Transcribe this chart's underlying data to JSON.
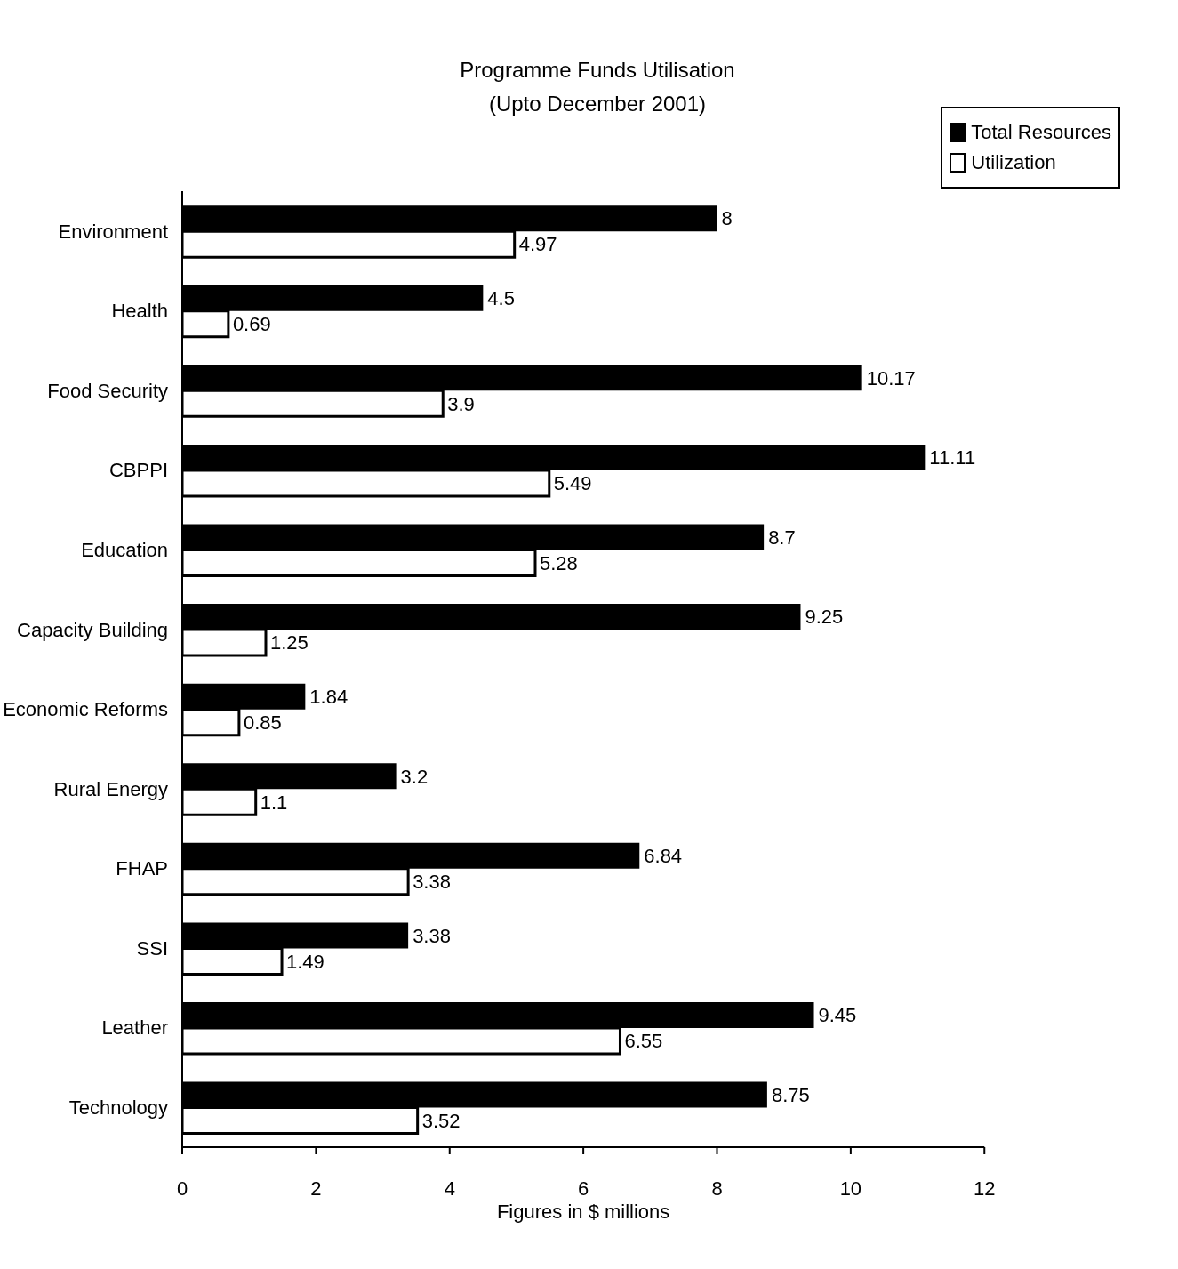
{
  "chart_data": {
    "type": "bar",
    "orientation": "horizontal",
    "title": "Programme Funds Utilisation",
    "subtitle": "(Upto December 2001)",
    "xlabel": "Figures in $ millions",
    "categories": [
      "Environment",
      "Health",
      "Food Security",
      "CBPPI",
      "Education",
      "Capacity Building",
      "Economic Reforms",
      "Rural Energy",
      "FHAP",
      "SSI",
      "Leather",
      "Technology"
    ],
    "series": [
      {
        "name": "Total Resources",
        "color": "#000000",
        "values": [
          8,
          4.5,
          10.17,
          11.11,
          8.7,
          9.25,
          1.84,
          3.2,
          6.84,
          3.38,
          9.45,
          8.75
        ]
      },
      {
        "name": "Utilization",
        "color": "#ffffff",
        "values": [
          4.97,
          0.69,
          3.9,
          5.49,
          5.28,
          1.25,
          0.85,
          1.1,
          3.38,
          1.49,
          6.55,
          3.52
        ]
      }
    ],
    "xlim": [
      0,
      12
    ],
    "xticks": [
      0,
      2,
      4,
      6,
      8,
      10,
      12
    ],
    "data_labels": true,
    "legend": "top right"
  }
}
